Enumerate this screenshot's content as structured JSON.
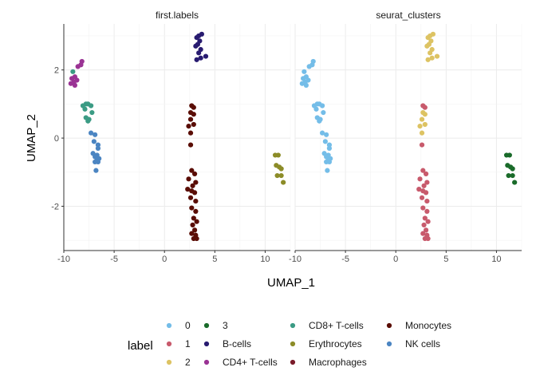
{
  "chart_data": {
    "type": "scatter",
    "xlabel": "UMAP_1",
    "ylabel": "UMAP_2",
    "xlim": [
      -10,
      12.5
    ],
    "ylim": [
      -3.3,
      3.35
    ],
    "x_ticks": [
      -10,
      -5,
      0,
      5,
      10
    ],
    "y_ticks": [
      -2,
      0,
      2
    ],
    "grid": true,
    "legend": {
      "title": "label",
      "position": "bottom",
      "entries": [
        {
          "label": "0",
          "color": "#74bde8"
        },
        {
          "label": "1",
          "color": "#c85a6c"
        },
        {
          "label": "2",
          "color": "#ddc363"
        },
        {
          "label": "3",
          "color": "#1a6b2a"
        },
        {
          "label": "B-cells",
          "color": "#281b70"
        },
        {
          "label": "CD4+ T-cells",
          "color": "#9a3394"
        },
        {
          "label": "CD8+ T-cells",
          "color": "#3b9b84"
        },
        {
          "label": "Erythrocytes",
          "color": "#8c8c28"
        },
        {
          "label": "Macrophages",
          "color": "#7a1b2a"
        },
        {
          "label": "Monocytes",
          "color": "#5a0d05"
        },
        {
          "label": "NK cells",
          "color": "#4b85c2"
        }
      ]
    },
    "panels": [
      {
        "title": "first.labels",
        "series": [
          {
            "name": "B-cells",
            "points": [
              [
                3.7,
                3.05
              ],
              [
                3.4,
                3.0
              ],
              [
                3.2,
                2.95
              ],
              [
                3.5,
                2.85
              ],
              [
                3.3,
                2.75
              ],
              [
                3.1,
                2.7
              ],
              [
                3.6,
                2.6
              ],
              [
                3.4,
                2.5
              ],
              [
                4.1,
                2.4
              ],
              [
                3.6,
                2.35
              ],
              [
                3.2,
                2.3
              ]
            ]
          },
          {
            "name": "CD4+ T-cells",
            "points": [
              [
                -8.2,
                2.25
              ],
              [
                -8.3,
                2.15
              ],
              [
                -8.6,
                2.1
              ],
              [
                -8.9,
                1.8
              ],
              [
                -9.2,
                1.75
              ],
              [
                -8.7,
                1.7
              ],
              [
                -9.0,
                1.65
              ],
              [
                -9.3,
                1.6
              ],
              [
                -8.9,
                1.55
              ]
            ]
          },
          {
            "name": "CD8+ T-cells",
            "points": [
              [
                -9.1,
                1.95
              ],
              [
                -7.8,
                1.0
              ],
              [
                -7.6,
                1.0
              ],
              [
                -8.1,
                0.95
              ],
              [
                -7.3,
                0.95
              ],
              [
                -7.9,
                0.85
              ],
              [
                -7.2,
                0.75
              ],
              [
                -7.8,
                0.6
              ],
              [
                -7.5,
                0.55
              ],
              [
                -7.6,
                0.5
              ]
            ]
          },
          {
            "name": "NK cells",
            "points": [
              [
                -7.3,
                0.15
              ],
              [
                -6.9,
                0.1
              ],
              [
                -7.0,
                -0.1
              ],
              [
                -6.6,
                -0.2
              ],
              [
                -6.6,
                -0.3
              ],
              [
                -7.1,
                -0.45
              ],
              [
                -6.7,
                -0.5
              ],
              [
                -6.9,
                -0.55
              ],
              [
                -6.5,
                -0.6
              ],
              [
                -6.7,
                -0.65
              ],
              [
                -6.6,
                -0.7
              ],
              [
                -6.9,
                -0.7
              ],
              [
                -6.8,
                -0.95
              ]
            ]
          },
          {
            "name": "Monocytes",
            "points": [
              [
                2.7,
                0.95
              ],
              [
                2.9,
                0.9
              ],
              [
                2.6,
                0.75
              ],
              [
                2.9,
                0.7
              ],
              [
                2.6,
                0.55
              ],
              [
                2.9,
                0.4
              ],
              [
                2.4,
                0.35
              ],
              [
                2.6,
                0.15
              ],
              [
                2.6,
                -0.2
              ],
              [
                2.7,
                -0.95
              ],
              [
                3.0,
                -1.05
              ],
              [
                2.4,
                -1.2
              ],
              [
                3.1,
                -1.3
              ],
              [
                2.8,
                -1.4
              ],
              [
                2.3,
                -1.5
              ],
              [
                2.7,
                -1.55
              ],
              [
                3.0,
                -1.6
              ],
              [
                2.6,
                -1.75
              ],
              [
                3.1,
                -1.85
              ],
              [
                2.7,
                -2.05
              ],
              [
                3.1,
                -2.15
              ],
              [
                2.9,
                -2.35
              ],
              [
                3.2,
                -2.45
              ],
              [
                2.8,
                -2.55
              ],
              [
                3.0,
                -2.7
              ],
              [
                2.7,
                -2.8
              ],
              [
                3.1,
                -2.85
              ],
              [
                3.2,
                -2.95
              ],
              [
                2.9,
                -2.95
              ]
            ]
          },
          {
            "name": "Erythrocytes",
            "points": [
              [
                11.0,
                -0.5
              ],
              [
                11.3,
                -0.5
              ],
              [
                11.1,
                -0.8
              ],
              [
                11.4,
                -0.85
              ],
              [
                11.6,
                -0.9
              ],
              [
                11.2,
                -1.1
              ],
              [
                11.6,
                -1.1
              ],
              [
                11.8,
                -1.3
              ]
            ]
          }
        ]
      },
      {
        "title": "seurat_clusters",
        "series": [
          {
            "name": "2",
            "points": [
              [
                3.7,
                3.05
              ],
              [
                3.4,
                3.0
              ],
              [
                3.2,
                2.95
              ],
              [
                3.5,
                2.85
              ],
              [
                3.3,
                2.75
              ],
              [
                3.1,
                2.7
              ],
              [
                3.6,
                2.6
              ],
              [
                3.4,
                2.5
              ],
              [
                4.1,
                2.4
              ],
              [
                3.6,
                2.35
              ],
              [
                3.2,
                2.3
              ],
              [
                2.7,
                0.75
              ],
              [
                2.9,
                0.7
              ],
              [
                2.6,
                0.55
              ],
              [
                2.9,
                0.4
              ],
              [
                2.4,
                0.35
              ],
              [
                2.6,
                0.15
              ]
            ]
          },
          {
            "name": "0",
            "points": [
              [
                -8.2,
                2.25
              ],
              [
                -8.3,
                2.15
              ],
              [
                -8.6,
                2.1
              ],
              [
                -9.1,
                1.95
              ],
              [
                -8.9,
                1.8
              ],
              [
                -9.2,
                1.75
              ],
              [
                -8.7,
                1.7
              ],
              [
                -9.0,
                1.65
              ],
              [
                -9.3,
                1.6
              ],
              [
                -8.9,
                1.55
              ],
              [
                -7.8,
                1.0
              ],
              [
                -7.6,
                1.0
              ],
              [
                -8.1,
                0.95
              ],
              [
                -7.3,
                0.95
              ],
              [
                -7.9,
                0.85
              ],
              [
                -7.2,
                0.75
              ],
              [
                -7.8,
                0.6
              ],
              [
                -7.5,
                0.55
              ],
              [
                -7.6,
                0.5
              ],
              [
                -7.3,
                0.15
              ],
              [
                -6.9,
                0.1
              ],
              [
                -7.0,
                -0.1
              ],
              [
                -6.6,
                -0.2
              ],
              [
                -6.6,
                -0.3
              ],
              [
                -7.1,
                -0.45
              ],
              [
                -6.7,
                -0.5
              ],
              [
                -6.9,
                -0.55
              ],
              [
                -6.5,
                -0.6
              ],
              [
                -6.7,
                -0.65
              ],
              [
                -6.6,
                -0.7
              ],
              [
                -6.9,
                -0.7
              ],
              [
                -6.8,
                -0.95
              ]
            ]
          },
          {
            "name": "1",
            "points": [
              [
                2.7,
                0.95
              ],
              [
                2.9,
                0.9
              ],
              [
                2.6,
                -0.2
              ],
              [
                2.7,
                -0.95
              ],
              [
                3.0,
                -1.05
              ],
              [
                2.4,
                -1.2
              ],
              [
                3.1,
                -1.3
              ],
              [
                2.8,
                -1.4
              ],
              [
                2.3,
                -1.5
              ],
              [
                2.7,
                -1.55
              ],
              [
                3.0,
                -1.6
              ],
              [
                2.6,
                -1.75
              ],
              [
                3.1,
                -1.85
              ],
              [
                2.7,
                -2.05
              ],
              [
                3.1,
                -2.15
              ],
              [
                2.9,
                -2.35
              ],
              [
                3.2,
                -2.45
              ],
              [
                2.8,
                -2.55
              ],
              [
                3.0,
                -2.7
              ],
              [
                2.7,
                -2.8
              ],
              [
                3.1,
                -2.85
              ],
              [
                3.2,
                -2.95
              ],
              [
                2.9,
                -2.95
              ]
            ]
          },
          {
            "name": "3",
            "points": [
              [
                11.0,
                -0.5
              ],
              [
                11.3,
                -0.5
              ],
              [
                11.1,
                -0.8
              ],
              [
                11.4,
                -0.85
              ],
              [
                11.6,
                -0.9
              ],
              [
                11.2,
                -1.1
              ],
              [
                11.6,
                -1.1
              ],
              [
                11.8,
                -1.3
              ]
            ]
          }
        ]
      }
    ]
  }
}
